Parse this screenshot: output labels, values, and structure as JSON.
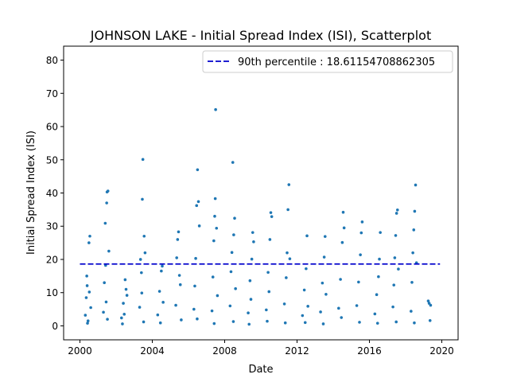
{
  "chart_data": {
    "type": "scatter",
    "title": "JOHNSON LAKE - Initial Spread Index (ISI), Scatterplot",
    "xlabel": "Date",
    "ylabel": "Initial Spread Index (ISI)",
    "xlim": [
      1999.1,
      2020.9
    ],
    "ylim": [
      -4.2,
      84.2
    ],
    "xticks": [
      {
        "value": 2000,
        "label": "2000"
      },
      {
        "value": 2004,
        "label": "2004"
      },
      {
        "value": 2008,
        "label": "2008"
      },
      {
        "value": 2012,
        "label": "2012"
      },
      {
        "value": 2016,
        "label": "2016"
      },
      {
        "value": 2020,
        "label": "2020"
      }
    ],
    "yticks": [
      {
        "value": 0,
        "label": "0"
      },
      {
        "value": 10,
        "label": "10"
      },
      {
        "value": 20,
        "label": "20"
      },
      {
        "value": 30,
        "label": "30"
      },
      {
        "value": 40,
        "label": "40"
      },
      {
        "value": 50,
        "label": "50"
      },
      {
        "value": 60,
        "label": "60"
      },
      {
        "value": 70,
        "label": "70"
      },
      {
        "value": 80,
        "label": "80"
      }
    ],
    "grid": false,
    "legend_position": "upper-right",
    "reference_line": {
      "label": "90th percentile : 18.61154708862305",
      "y": 18.61154708862305,
      "x_range": [
        2000.0,
        2019.9
      ],
      "color": "#0000cc",
      "style": "dashed"
    },
    "point_color": "#1f77b4",
    "series": [
      {
        "points": [
          [
            2000.3,
            3.2
          ],
          [
            2000.35,
            8.5
          ],
          [
            2000.4,
            12.1
          ],
          [
            2000.45,
            1.5
          ],
          [
            2000.5,
            25.0
          ],
          [
            2000.55,
            27.0
          ],
          [
            2000.6,
            5.5
          ],
          [
            2000.38,
            15.0
          ],
          [
            2000.42,
            0.8
          ],
          [
            2000.52,
            10.2
          ],
          [
            2001.3,
            4.1
          ],
          [
            2001.35,
            13.0
          ],
          [
            2001.4,
            30.9
          ],
          [
            2001.45,
            7.2
          ],
          [
            2001.5,
            40.3
          ],
          [
            2001.55,
            40.6
          ],
          [
            2001.6,
            22.5
          ],
          [
            2001.48,
            37.0
          ],
          [
            2001.42,
            18.2
          ],
          [
            2001.52,
            2.0
          ],
          [
            2002.3,
            2.4
          ],
          [
            2002.4,
            6.8
          ],
          [
            2002.5,
            13.9
          ],
          [
            2002.55,
            11.0
          ],
          [
            2002.6,
            9.2
          ],
          [
            2002.45,
            3.5
          ],
          [
            2002.35,
            0.6
          ],
          [
            2003.3,
            5.6
          ],
          [
            2003.35,
            20.0
          ],
          [
            2003.4,
            16.0
          ],
          [
            2003.45,
            38.1
          ],
          [
            2003.48,
            50.1
          ],
          [
            2003.55,
            27.0
          ],
          [
            2003.6,
            22.0
          ],
          [
            2003.52,
            1.2
          ],
          [
            2003.42,
            9.9
          ],
          [
            2004.3,
            3.3
          ],
          [
            2004.4,
            10.4
          ],
          [
            2004.5,
            16.5
          ],
          [
            2004.55,
            18.0
          ],
          [
            2004.6,
            7.1
          ],
          [
            2004.45,
            0.9
          ],
          [
            2005.3,
            6.2
          ],
          [
            2005.35,
            20.5
          ],
          [
            2005.4,
            26.0
          ],
          [
            2005.45,
            28.3
          ],
          [
            2005.55,
            12.4
          ],
          [
            2005.6,
            1.8
          ],
          [
            2005.5,
            15.2
          ],
          [
            2006.3,
            5.0
          ],
          [
            2006.35,
            12.0
          ],
          [
            2006.4,
            20.3
          ],
          [
            2006.45,
            36.2
          ],
          [
            2006.5,
            47.0
          ],
          [
            2006.55,
            37.4
          ],
          [
            2006.6,
            30.1
          ],
          [
            2006.48,
            2.1
          ],
          [
            2007.3,
            4.5
          ],
          [
            2007.35,
            14.7
          ],
          [
            2007.4,
            25.6
          ],
          [
            2007.45,
            33.0
          ],
          [
            2007.48,
            38.3
          ],
          [
            2007.5,
            65.1
          ],
          [
            2007.55,
            29.4
          ],
          [
            2007.6,
            9.1
          ],
          [
            2007.42,
            0.7
          ],
          [
            2008.3,
            6.0
          ],
          [
            2008.35,
            16.3
          ],
          [
            2008.4,
            22.1
          ],
          [
            2008.45,
            49.2
          ],
          [
            2008.5,
            27.4
          ],
          [
            2008.55,
            32.4
          ],
          [
            2008.6,
            11.2
          ],
          [
            2008.48,
            1.3
          ],
          [
            2009.3,
            3.9
          ],
          [
            2009.4,
            13.6
          ],
          [
            2009.5,
            20.1
          ],
          [
            2009.55,
            28.1
          ],
          [
            2009.6,
            25.3
          ],
          [
            2009.45,
            8.0
          ],
          [
            2009.35,
            0.5
          ],
          [
            2010.3,
            4.8
          ],
          [
            2010.4,
            16.1
          ],
          [
            2010.5,
            26.0
          ],
          [
            2010.55,
            34.1
          ],
          [
            2010.6,
            32.9
          ],
          [
            2010.45,
            10.3
          ],
          [
            2010.35,
            1.4
          ],
          [
            2011.3,
            6.6
          ],
          [
            2011.4,
            14.5
          ],
          [
            2011.45,
            22.0
          ],
          [
            2011.5,
            35.0
          ],
          [
            2011.55,
            42.5
          ],
          [
            2011.6,
            20.2
          ],
          [
            2011.35,
            0.9
          ],
          [
            2012.3,
            3.1
          ],
          [
            2012.4,
            10.8
          ],
          [
            2012.5,
            17.2
          ],
          [
            2012.55,
            27.1
          ],
          [
            2012.6,
            5.9
          ],
          [
            2012.45,
            1.0
          ],
          [
            2013.3,
            4.2
          ],
          [
            2013.4,
            12.9
          ],
          [
            2013.5,
            20.7
          ],
          [
            2013.55,
            26.9
          ],
          [
            2013.6,
            9.5
          ],
          [
            2013.45,
            0.6
          ],
          [
            2014.3,
            5.3
          ],
          [
            2014.4,
            14.0
          ],
          [
            2014.5,
            25.1
          ],
          [
            2014.55,
            34.2
          ],
          [
            2014.6,
            29.5
          ],
          [
            2014.45,
            2.5
          ],
          [
            2015.3,
            6.1
          ],
          [
            2015.4,
            13.2
          ],
          [
            2015.5,
            21.4
          ],
          [
            2015.55,
            28.0
          ],
          [
            2015.6,
            31.3
          ],
          [
            2015.45,
            1.1
          ],
          [
            2016.3,
            3.6
          ],
          [
            2016.4,
            9.4
          ],
          [
            2016.5,
            14.8
          ],
          [
            2016.55,
            20.1
          ],
          [
            2016.6,
            28.1
          ],
          [
            2016.45,
            0.8
          ],
          [
            2017.3,
            5.7
          ],
          [
            2017.35,
            12.3
          ],
          [
            2017.4,
            20.5
          ],
          [
            2017.45,
            27.2
          ],
          [
            2017.5,
            33.9
          ],
          [
            2017.55,
            34.9
          ],
          [
            2017.6,
            17.1
          ],
          [
            2017.48,
            1.2
          ],
          [
            2018.3,
            4.4
          ],
          [
            2018.35,
            13.1
          ],
          [
            2018.4,
            22.0
          ],
          [
            2018.45,
            28.9
          ],
          [
            2018.5,
            34.5
          ],
          [
            2018.55,
            42.4
          ],
          [
            2018.6,
            19.0
          ],
          [
            2018.48,
            0.9
          ],
          [
            2019.25,
            7.5
          ],
          [
            2019.3,
            6.8
          ],
          [
            2019.35,
            1.6
          ],
          [
            2019.38,
            6.2
          ]
        ]
      }
    ]
  }
}
